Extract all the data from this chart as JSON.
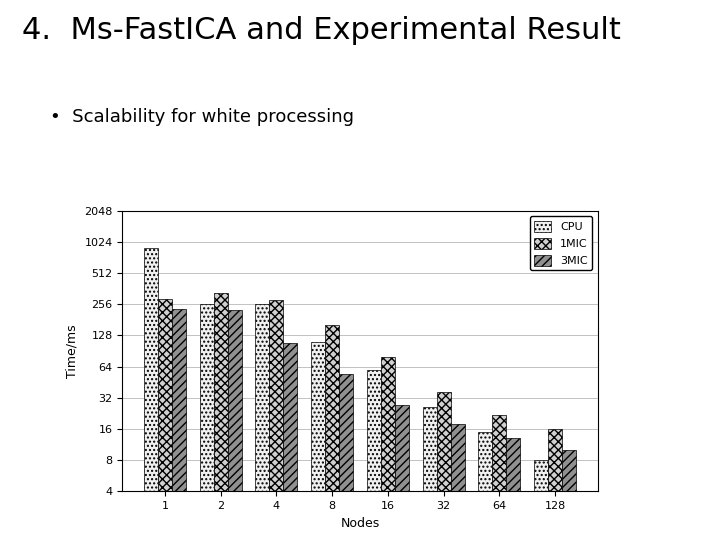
{
  "title": "4.  Ms-FastICA and Experimental Result",
  "subtitle": "•  Scalability for white processing",
  "node_labels": [
    "1",
    "2",
    "4",
    "8",
    "16",
    "32",
    "64",
    "128"
  ],
  "cpu": [
    900,
    260,
    260,
    110,
    60,
    26,
    15,
    8
  ],
  "mic1": [
    290,
    330,
    280,
    160,
    80,
    36,
    22,
    16
  ],
  "mic3": [
    230,
    225,
    108,
    54,
    27,
    18,
    13,
    10
  ],
  "legend_labels": [
    "CPU",
    "1MIC",
    "3MIC"
  ],
  "xlabel": "Nodes",
  "ylabel": "Time/ms",
  "ylim_min": 4,
  "ylim_max": 2048,
  "yticks": [
    4,
    8,
    16,
    32,
    64,
    128,
    256,
    512,
    1024,
    2048
  ],
  "ytick_labels": [
    "4",
    "8",
    "16",
    "32",
    "64",
    "128",
    "256",
    "512",
    "1024",
    "2048"
  ],
  "bar_color_cpu": "#f0f0f0",
  "bar_color_1mic": "#d0d0d0",
  "bar_color_3mic": "#909090",
  "bar_hatch_cpu": "....",
  "bar_hatch_1mic": "xxxx",
  "bar_hatch_3mic": "////",
  "background_color": "#ffffff",
  "chart_bg": "#ffffff",
  "title_fontsize": 22,
  "subtitle_fontsize": 13,
  "axis_fontsize": 9,
  "tick_fontsize": 8,
  "legend_fontsize": 8,
  "bar_width": 0.25,
  "bar_edge_color": "#000000"
}
